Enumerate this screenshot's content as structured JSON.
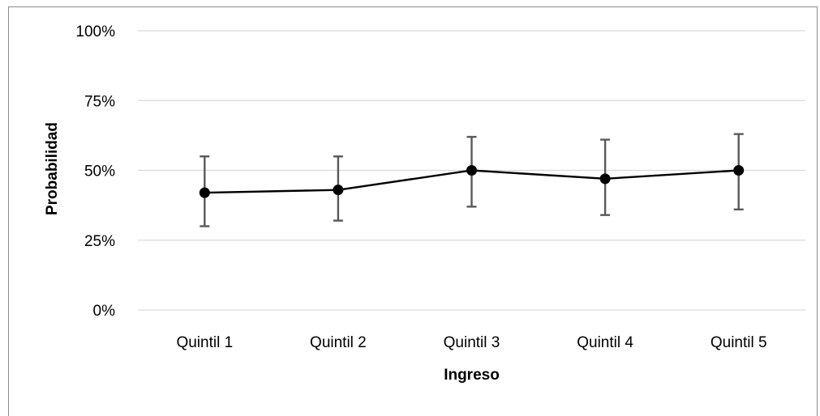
{
  "chart_data": {
    "type": "line",
    "title": "",
    "xlabel": "Ingreso",
    "ylabel": "Probabilidad",
    "categories": [
      "Quintil 1",
      "Quintil 2",
      "Quintil 3",
      "Quintil 4",
      "Quintil 5"
    ],
    "series": [
      {
        "values": [
          0.42,
          0.43,
          0.5,
          0.47,
          0.5
        ],
        "error_low": [
          0.3,
          0.32,
          0.37,
          0.34,
          0.36
        ],
        "error_high": [
          0.55,
          0.55,
          0.62,
          0.61,
          0.63
        ]
      }
    ],
    "ylim": [
      0,
      1
    ],
    "yticks": [
      0,
      0.25,
      0.5,
      0.75,
      1.0
    ],
    "ytick_labels": [
      "0%",
      "25%",
      "50%",
      "75%",
      "100%"
    ],
    "grid": true,
    "legend": "none",
    "colors": {
      "line": "#000000",
      "marker": "#000000",
      "error_bar": "#595959",
      "grid": "#d9d9d9",
      "border": "#8c8c8c"
    }
  }
}
